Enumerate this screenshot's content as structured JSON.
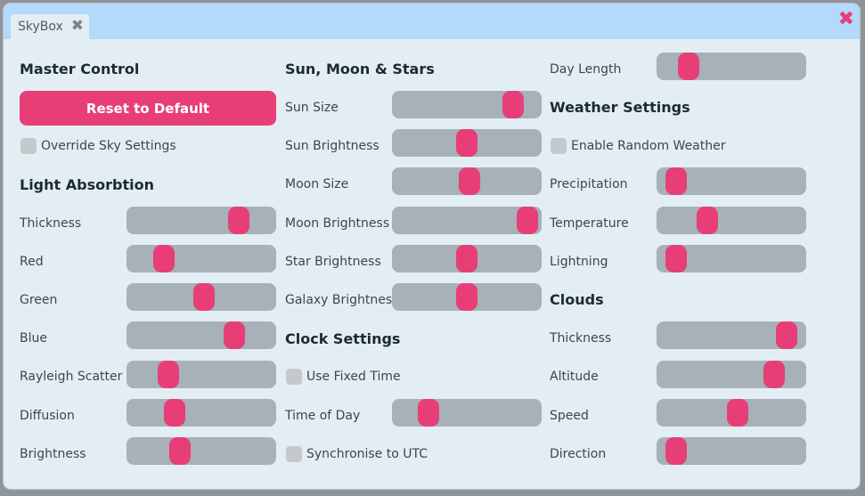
{
  "window": {
    "tab_label": "SkyBox",
    "tab_close_icon": "close-icon",
    "close_icon": "close-icon",
    "accent_color": "#e83e78",
    "header_color": "#b3d9fb"
  },
  "master": {
    "heading": "Master Control",
    "reset_label": "Reset to Default",
    "override_label": "Override Sky Settings",
    "override_checked": false
  },
  "light": {
    "heading": "Light Absorbtion",
    "thickness": {
      "label": "Thickness",
      "value": 0.79
    },
    "red": {
      "label": "Red",
      "value": 0.21
    },
    "green": {
      "label": "Green",
      "value": 0.52
    },
    "blue": {
      "label": "Blue",
      "value": 0.76
    },
    "rayleigh": {
      "label": "Rayleigh Scatter",
      "value": 0.24
    },
    "diffusion": {
      "label": "Diffusion",
      "value": 0.29
    },
    "brightness": {
      "label": "Brightness",
      "value": 0.33
    }
  },
  "sun_moon": {
    "heading": "Sun, Moon & Stars",
    "sun_size": {
      "label": "Sun Size",
      "value": 0.86
    },
    "sun_brightness": {
      "label": "Sun Brightness",
      "value": 0.5
    },
    "moon_size": {
      "label": "Moon Size",
      "value": 0.52
    },
    "moon_brightness": {
      "label": "Moon Brightness",
      "value": 0.97
    },
    "star_brightness": {
      "label": "Star Brightness",
      "value": 0.5
    },
    "galaxy_brightness": {
      "label": "Galaxy Brightness",
      "value": 0.5
    }
  },
  "clock": {
    "heading": "Clock Settings",
    "fixed_time_label": "Use Fixed Time",
    "fixed_time_checked": false,
    "time_of_day": {
      "label": "Time of Day",
      "value": 0.2
    },
    "utc_label": "Synchronise to UTC",
    "utc_checked": false
  },
  "day": {
    "day_length": {
      "label": "Day Length",
      "value": 0.17
    }
  },
  "weather": {
    "heading": "Weather Settings",
    "random_label": "Enable Random Weather",
    "random_checked": false,
    "precipitation": {
      "label": "Precipitation",
      "value": 0.07
    },
    "temperature": {
      "label": "Temperature",
      "value": 0.31
    },
    "lightning": {
      "label": "Lightning",
      "value": 0.07
    }
  },
  "clouds": {
    "heading": "Clouds",
    "thickness": {
      "label": "Thickness",
      "value": 0.93
    },
    "altitude": {
      "label": "Altitude",
      "value": 0.83
    },
    "speed": {
      "label": "Speed",
      "value": 0.55
    },
    "direction": {
      "label": "Direction",
      "value": 0.07
    }
  }
}
